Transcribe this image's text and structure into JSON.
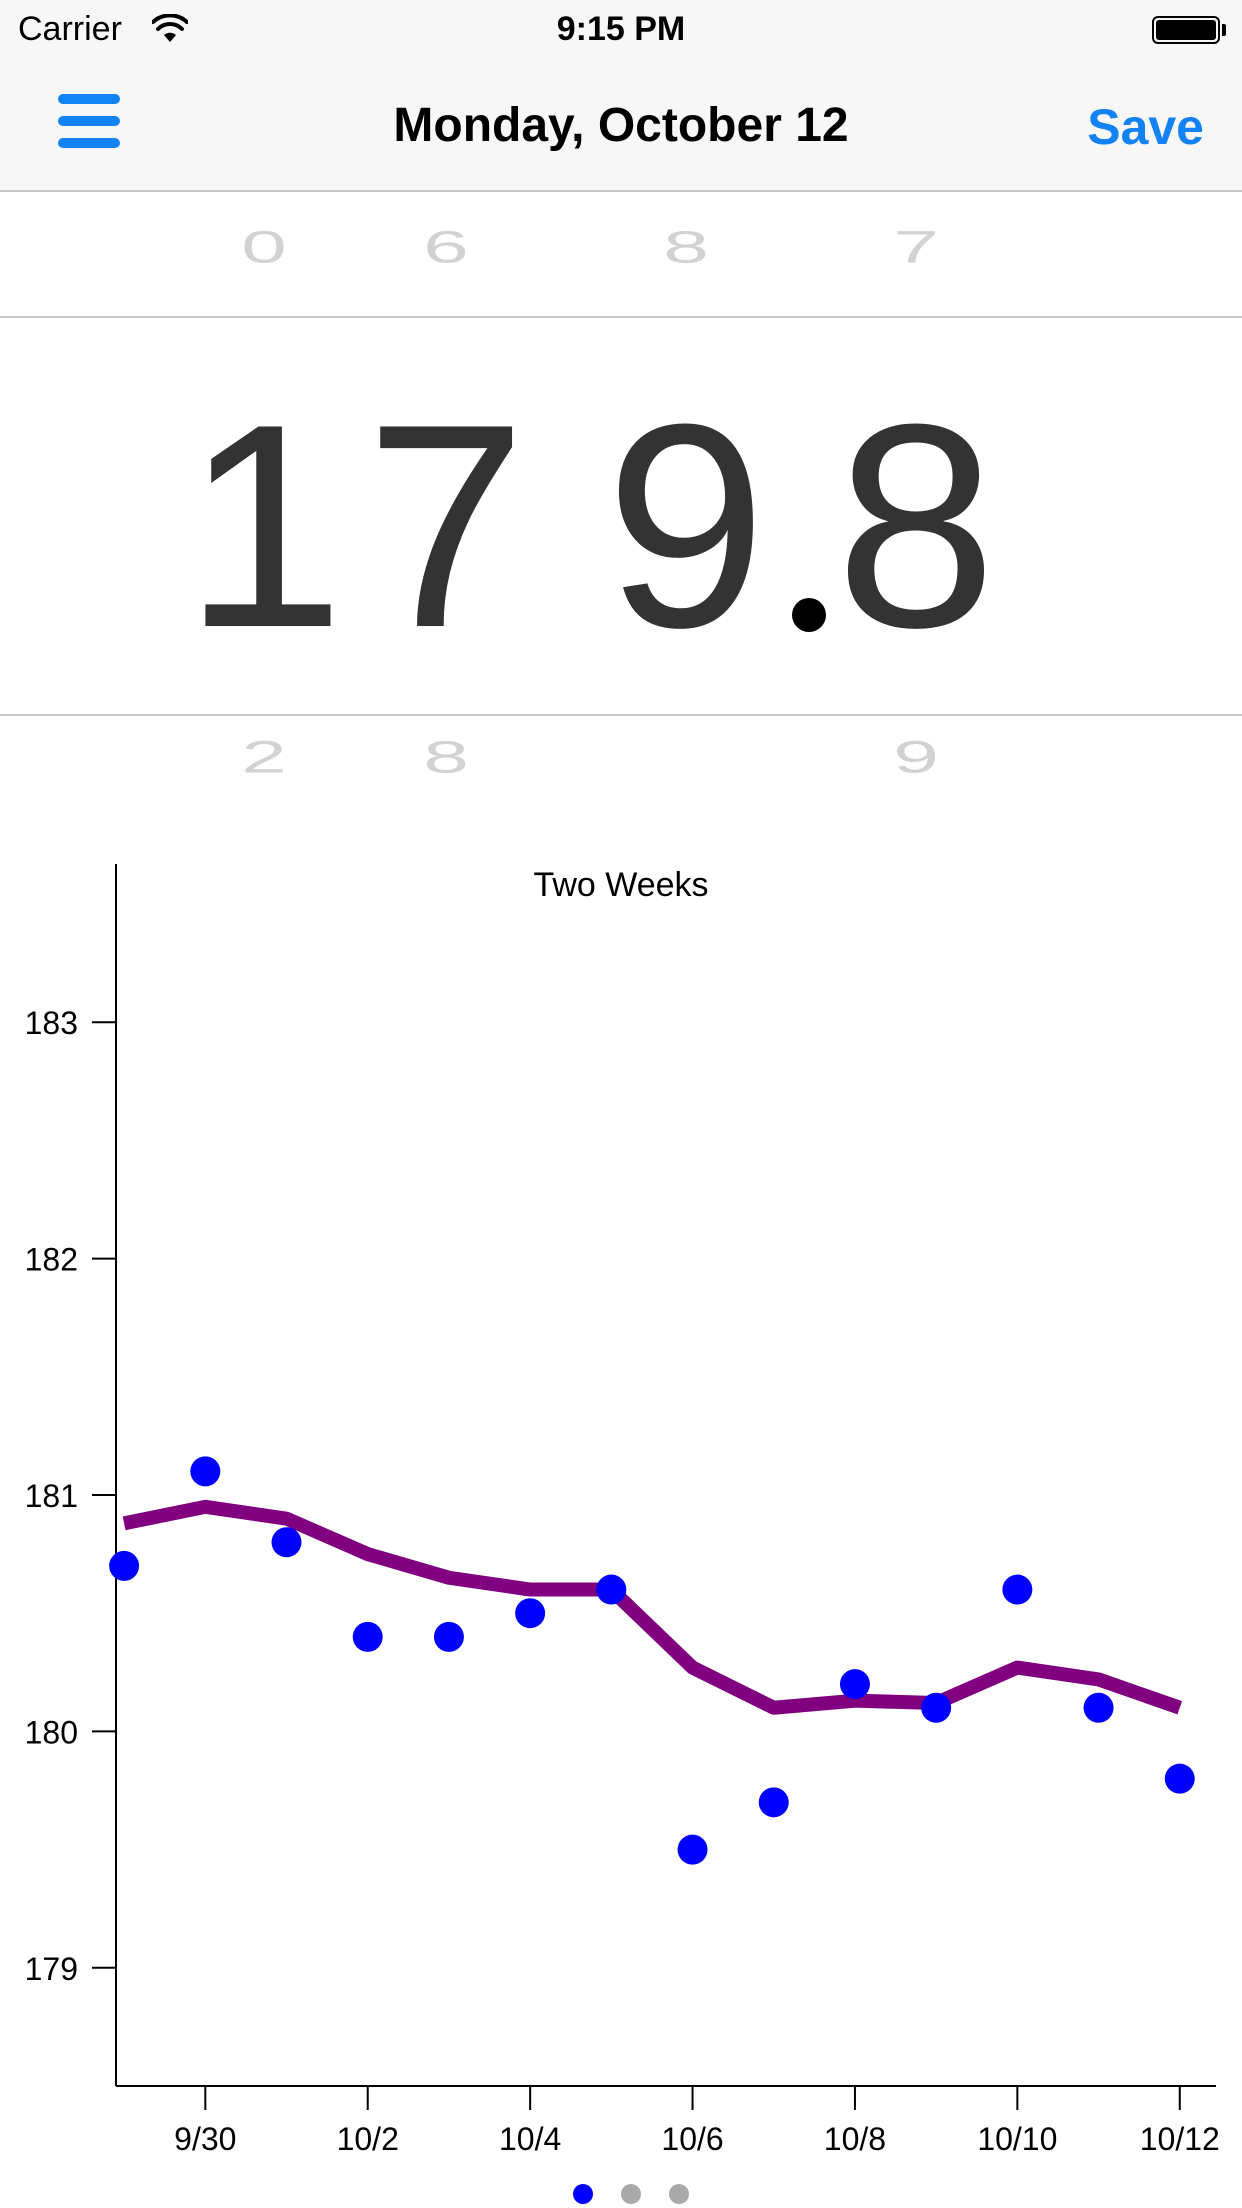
{
  "status_bar": {
    "carrier": "Carrier",
    "time": "9:15 PM"
  },
  "nav": {
    "title": "Monday, October 12",
    "save_label": "Save"
  },
  "picker": {
    "above": [
      "0",
      "6",
      "8",
      "7"
    ],
    "selected": [
      "1",
      "7",
      "9",
      "8"
    ],
    "below": [
      "2",
      "8",
      "",
      "9"
    ]
  },
  "colors": {
    "accent": "#1282f5",
    "points": "#0000ff",
    "trend": "#800080",
    "page_dot_active": "#0000ff",
    "page_dot_inactive": "#a9a9a9"
  },
  "page_control": {
    "count": 3,
    "active_index": 0
  },
  "chart_data": {
    "type": "scatter",
    "title": "Two Weeks",
    "xlabel": "",
    "ylabel": "",
    "x_ticks": [
      "9/30",
      "10/2",
      "10/4",
      "10/6",
      "10/8",
      "10/10",
      "10/12"
    ],
    "x_tick_values": [
      1,
      3,
      5,
      7,
      9,
      11,
      13
    ],
    "xlim": [
      -0.1,
      13.2
    ],
    "y_ticks": [
      179,
      180,
      181,
      182,
      183
    ],
    "ylim": [
      178.5,
      183.5
    ],
    "grid": false,
    "series": [
      {
        "kind": "points",
        "x": [
          0,
          1,
          2,
          3,
          4,
          5,
          6,
          7,
          8,
          9,
          10,
          11,
          12,
          13
        ],
        "values": [
          180.7,
          181.1,
          180.8,
          180.4,
          180.4,
          180.5,
          180.6,
          179.5,
          179.7,
          180.2,
          180.1,
          180.6,
          180.1,
          179.8
        ]
      },
      {
        "kind": "trend-line",
        "x": [
          0,
          1,
          2,
          3,
          4,
          5,
          6,
          7,
          8,
          9,
          10,
          11,
          12,
          13
        ],
        "values": [
          180.88,
          180.95,
          180.9,
          180.75,
          180.65,
          180.6,
          180.6,
          180.27,
          180.1,
          180.13,
          180.12,
          180.27,
          180.22,
          180.1
        ]
      }
    ]
  }
}
